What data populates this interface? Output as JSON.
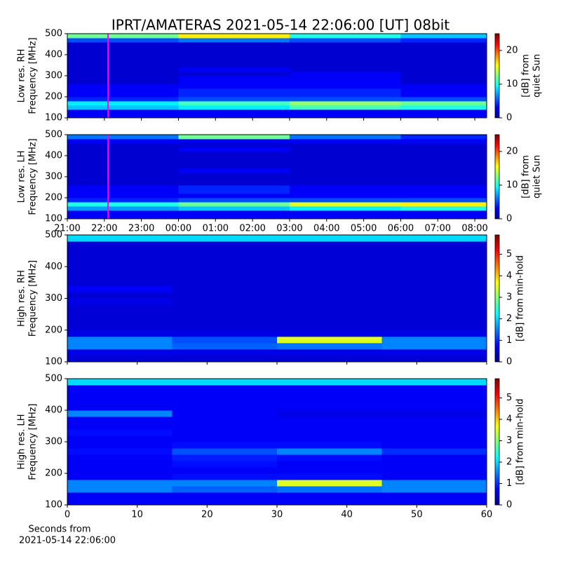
{
  "figure_title": "IPRT/AMATERAS 2021-05-14 22:06:00 [UT]   08bit",
  "chart_data": [
    {
      "type": "spectrogram",
      "ylabel": [
        "Low res. RH",
        "Frequency [MHz]"
      ],
      "xlim": [
        21,
        32.32
      ],
      "ylim": [
        100,
        500
      ],
      "yticks": [
        100,
        200,
        300,
        400,
        500
      ],
      "xticks": [
        21,
        22,
        23,
        24,
        25,
        26,
        27,
        28,
        29,
        30,
        31,
        32
      ],
      "show_xtick_labels": false,
      "marker_x": 22.1,
      "marker_color": "#ff00ff",
      "xbins": [
        21,
        24,
        27,
        30,
        32.32
      ],
      "ybins": [
        100,
        120,
        140,
        160,
        180,
        200,
        220,
        240,
        260,
        280,
        300,
        320,
        340,
        360,
        380,
        400,
        420,
        440,
        460,
        480,
        500
      ],
      "z": [
        [
          3,
          3,
          3,
          3
        ],
        [
          3,
          3,
          3,
          3
        ],
        [
          8,
          9,
          11,
          10
        ],
        [
          9,
          11,
          13,
          12
        ],
        [
          4,
          5,
          5,
          5
        ],
        [
          3,
          4,
          4,
          3
        ],
        [
          3,
          4,
          4,
          3
        ],
        [
          3,
          3,
          3,
          3
        ],
        [
          2,
          3,
          3,
          2
        ],
        [
          2,
          3,
          3,
          2
        ],
        [
          2,
          2,
          3,
          2
        ],
        [
          2,
          3,
          2,
          2
        ],
        [
          2,
          2,
          2,
          2
        ],
        [
          2,
          2,
          2,
          2
        ],
        [
          2,
          2,
          2,
          2
        ],
        [
          2,
          2,
          2,
          2
        ],
        [
          2,
          2,
          2,
          2
        ],
        [
          2,
          2,
          2,
          2
        ],
        [
          5,
          6,
          5,
          4
        ],
        [
          12,
          16,
          10,
          8
        ]
      ],
      "clim": [
        0,
        25
      ],
      "cticks": [
        0,
        10,
        20
      ],
      "clabel": [
        "[dB] from",
        "quiet Sun"
      ]
    },
    {
      "type": "spectrogram",
      "ylabel": [
        "Low res. LH",
        "Frequency [MHz]"
      ],
      "xlim": [
        21,
        32.32
      ],
      "ylim": [
        100,
        500
      ],
      "yticks": [
        100,
        200,
        300,
        400,
        500
      ],
      "xticks": [
        {
          "value": 21,
          "label": "21:00"
        },
        {
          "value": 22,
          "label": "22:00"
        },
        {
          "value": 23,
          "label": "23:00"
        },
        {
          "value": 24,
          "label": "00:00"
        },
        {
          "value": 25,
          "label": "01:00"
        },
        {
          "value": 26,
          "label": "02:00"
        },
        {
          "value": 27,
          "label": "03:00"
        },
        {
          "value": 28,
          "label": "04:00"
        },
        {
          "value": 29,
          "label": "05:00"
        },
        {
          "value": 30,
          "label": "06:00"
        },
        {
          "value": 31,
          "label": "07:00"
        },
        {
          "value": 32,
          "label": "08:00"
        }
      ],
      "show_xtick_labels": true,
      "marker_x": 22.1,
      "marker_color": "#ff00ff",
      "xbins": [
        21,
        24,
        27,
        30,
        32.32
      ],
      "ybins": [
        100,
        120,
        140,
        160,
        180,
        200,
        220,
        240,
        260,
        280,
        300,
        320,
        340,
        360,
        380,
        400,
        420,
        440,
        460,
        480,
        500
      ],
      "z": [
        [
          3,
          3,
          3,
          3
        ],
        [
          3,
          3,
          3,
          3
        ],
        [
          7,
          8,
          9,
          10
        ],
        [
          10,
          12,
          15,
          16
        ],
        [
          4,
          5,
          5,
          5
        ],
        [
          3,
          3,
          3,
          3
        ],
        [
          3,
          4,
          3,
          3
        ],
        [
          3,
          4,
          3,
          3
        ],
        [
          2,
          2,
          2,
          2
        ],
        [
          2,
          2,
          2,
          2
        ],
        [
          2,
          2,
          2,
          2
        ],
        [
          2,
          3,
          2,
          2
        ],
        [
          2,
          2,
          2,
          2
        ],
        [
          2,
          2,
          2,
          2
        ],
        [
          2,
          2,
          2,
          2
        ],
        [
          2,
          2,
          2,
          2
        ],
        [
          2,
          3,
          2,
          2
        ],
        [
          2,
          2,
          2,
          2
        ],
        [
          3,
          3,
          3,
          3
        ],
        [
          6,
          12,
          6,
          4
        ]
      ],
      "clim": [
        0,
        25
      ],
      "cticks": [
        0,
        10,
        20
      ],
      "clabel": [
        "[dB] from",
        "quiet Sun"
      ]
    },
    {
      "type": "spectrogram",
      "ylabel": [
        "High res. RH",
        "Frequency [MHz]"
      ],
      "xlim": [
        0,
        60
      ],
      "ylim": [
        100,
        500
      ],
      "yticks": [
        100,
        200,
        300,
        400,
        500
      ],
      "xticks": [
        0,
        10,
        20,
        30,
        40,
        50,
        60
      ],
      "show_xtick_labels": false,
      "xbins": [
        0,
        15,
        30,
        45,
        60
      ],
      "ybins": [
        100,
        120,
        140,
        160,
        180,
        200,
        220,
        240,
        260,
        280,
        300,
        320,
        340,
        360,
        380,
        400,
        420,
        440,
        460,
        480,
        500
      ],
      "z": [
        [
          0.5,
          0.5,
          0.5,
          0.5
        ],
        [
          0.6,
          0.6,
          0.6,
          0.6
        ],
        [
          1.5,
          1.3,
          1.4,
          1.5
        ],
        [
          1.5,
          1.2,
          3.5,
          1.5
        ],
        [
          0.6,
          0.6,
          0.6,
          0.6
        ],
        [
          0.5,
          0.5,
          0.5,
          0.5
        ],
        [
          0.5,
          0.5,
          0.5,
          0.5
        ],
        [
          0.5,
          0.5,
          0.5,
          0.5
        ],
        [
          0.5,
          0.5,
          0.5,
          0.5
        ],
        [
          0.6,
          0.5,
          0.5,
          0.5
        ],
        [
          0.5,
          0.5,
          0.5,
          0.5
        ],
        [
          0.7,
          0.5,
          0.5,
          0.5
        ],
        [
          0.5,
          0.5,
          0.5,
          0.5
        ],
        [
          0.5,
          0.5,
          0.5,
          0.5
        ],
        [
          0.5,
          0.5,
          0.5,
          0.5
        ],
        [
          0.5,
          0.5,
          0.5,
          0.5
        ],
        [
          0.5,
          0.5,
          0.5,
          0.5
        ],
        [
          0.5,
          0.5,
          0.5,
          0.5
        ],
        [
          0.5,
          0.5,
          0.5,
          0.5
        ],
        [
          2,
          2,
          2,
          2
        ]
      ],
      "clim": [
        0,
        5.9
      ],
      "cticks": [
        0,
        1,
        2,
        3,
        4,
        5
      ],
      "clabel": [
        "[dB] from min-hold"
      ]
    },
    {
      "type": "spectrogram",
      "ylabel": [
        "High res. LH",
        "Frequency [MHz]"
      ],
      "xlim": [
        0,
        60
      ],
      "ylim": [
        100,
        500
      ],
      "yticks": [
        100,
        200,
        300,
        400,
        500
      ],
      "xticks": [
        0,
        10,
        20,
        30,
        40,
        50,
        60
      ],
      "show_xtick_labels": true,
      "xlabel": [
        "Seconds from",
        "2021-05-14 22:06:00"
      ],
      "xbins": [
        0,
        15,
        30,
        45,
        60
      ],
      "ybins": [
        100,
        120,
        140,
        160,
        180,
        200,
        220,
        240,
        260,
        280,
        300,
        320,
        340,
        360,
        380,
        400,
        420,
        440,
        460,
        480,
        500
      ],
      "z": [
        [
          0.7,
          0.7,
          0.7,
          0.7
        ],
        [
          0.7,
          0.7,
          0.7,
          0.7
        ],
        [
          1.5,
          1.3,
          1.4,
          1.5
        ],
        [
          1.5,
          1.5,
          3.5,
          1.5
        ],
        [
          0.7,
          0.8,
          0.8,
          0.7
        ],
        [
          0.7,
          0.7,
          0.7,
          0.7
        ],
        [
          0.7,
          0.8,
          0.7,
          0.7
        ],
        [
          0.7,
          0.9,
          0.8,
          0.7
        ],
        [
          0.8,
          1.2,
          1.5,
          1.0
        ],
        [
          0.7,
          0.8,
          0.8,
          0.7
        ],
        [
          0.7,
          0.7,
          0.7,
          0.7
        ],
        [
          0.8,
          0.7,
          0.7,
          0.7
        ],
        [
          0.7,
          0.7,
          0.7,
          0.7
        ],
        [
          0.7,
          0.7,
          0.7,
          0.7
        ],
        [
          1.5,
          0.7,
          0.6,
          0.6
        ],
        [
          0.7,
          0.7,
          0.7,
          0.7
        ],
        [
          0.7,
          0.7,
          0.7,
          0.7
        ],
        [
          0.7,
          0.7,
          0.7,
          0.7
        ],
        [
          0.7,
          0.7,
          0.7,
          0.7
        ],
        [
          2,
          2,
          2,
          2
        ]
      ],
      "clim": [
        0,
        5.9
      ],
      "cticks": [
        0,
        1,
        2,
        3,
        4,
        5
      ],
      "clabel": [
        "[dB] from min-hold"
      ]
    }
  ]
}
